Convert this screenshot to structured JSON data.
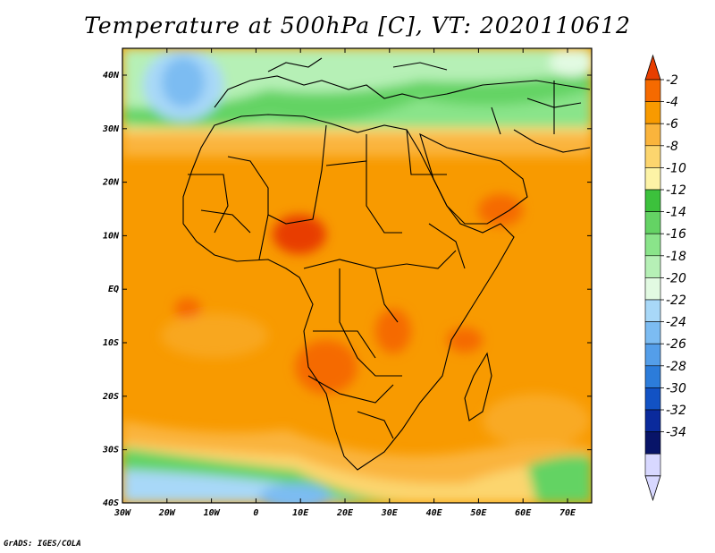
{
  "title": "Temperature at 500hPa [C], VT: 2020110612",
  "credit": "GrADS: IGES/COLA",
  "map": {
    "lat_labels": [
      "40N",
      "30N",
      "20N",
      "10N",
      "EQ",
      "10S",
      "20S",
      "30S",
      "40S"
    ],
    "lon_labels": [
      "30W",
      "20W",
      "10W",
      "0",
      "10E",
      "20E",
      "30E",
      "40E",
      "50E",
      "60E",
      "70E"
    ]
  },
  "colorbar": {
    "labels": [
      "-2",
      "-4",
      "-6",
      "-8",
      "-10",
      "-12",
      "-14",
      "-16",
      "-18",
      "-20",
      "-22",
      "-24",
      "-26",
      "-28",
      "-30",
      "-32",
      "-34"
    ],
    "colors": [
      "#e83e00",
      "#f56a00",
      "#f89a00",
      "#fab43c",
      "#fcd56e",
      "#fdf3a6",
      "#3cc13c",
      "#64d364",
      "#8ae48a",
      "#b6f0b6",
      "#e2fae2",
      "#a8d8f8",
      "#7cbcf2",
      "#549ee9",
      "#2c7cda",
      "#1252c4",
      "#0a2a9c",
      "#081468",
      "#d8d8ff"
    ]
  }
}
